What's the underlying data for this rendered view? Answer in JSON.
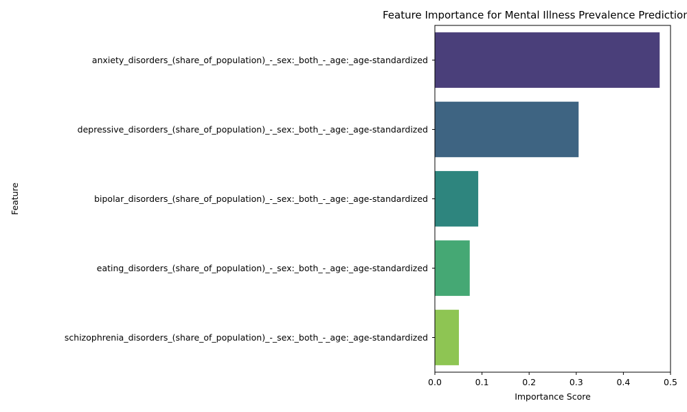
{
  "chart_data": {
    "type": "bar",
    "orientation": "horizontal",
    "title": "Feature Importance for Mental Illness Prevalence Prediction",
    "xlabel": "Importance Score",
    "ylabel": "Feature",
    "xlim": [
      0,
      0.5
    ],
    "xticks": [
      0.0,
      0.1,
      0.2,
      0.3,
      0.4,
      0.5
    ],
    "xtick_labels": [
      "0.0",
      "0.1",
      "0.2",
      "0.3",
      "0.4",
      "0.5"
    ],
    "grid": false,
    "legend": "none",
    "categories": [
      "anxiety_disorders_(share_of_population)_-_sex:_both_-_age:_age-standardized",
      "depressive_disorders_(share_of_population)_-_sex:_both_-_age:_age-standardized",
      "bipolar_disorders_(share_of_population)_-_sex:_both_-_age:_age-standardized",
      "eating_disorders_(share_of_population)_-_sex:_both_-_age:_age-standardized",
      "schizophrenia_disorders_(share_of_population)_-_sex:_both_-_age:_age-standardized"
    ],
    "values": [
      0.477,
      0.305,
      0.092,
      0.074,
      0.051
    ],
    "colors": [
      "#4a3f7a",
      "#3e6482",
      "#2e857e",
      "#45a874",
      "#8ec553"
    ]
  }
}
